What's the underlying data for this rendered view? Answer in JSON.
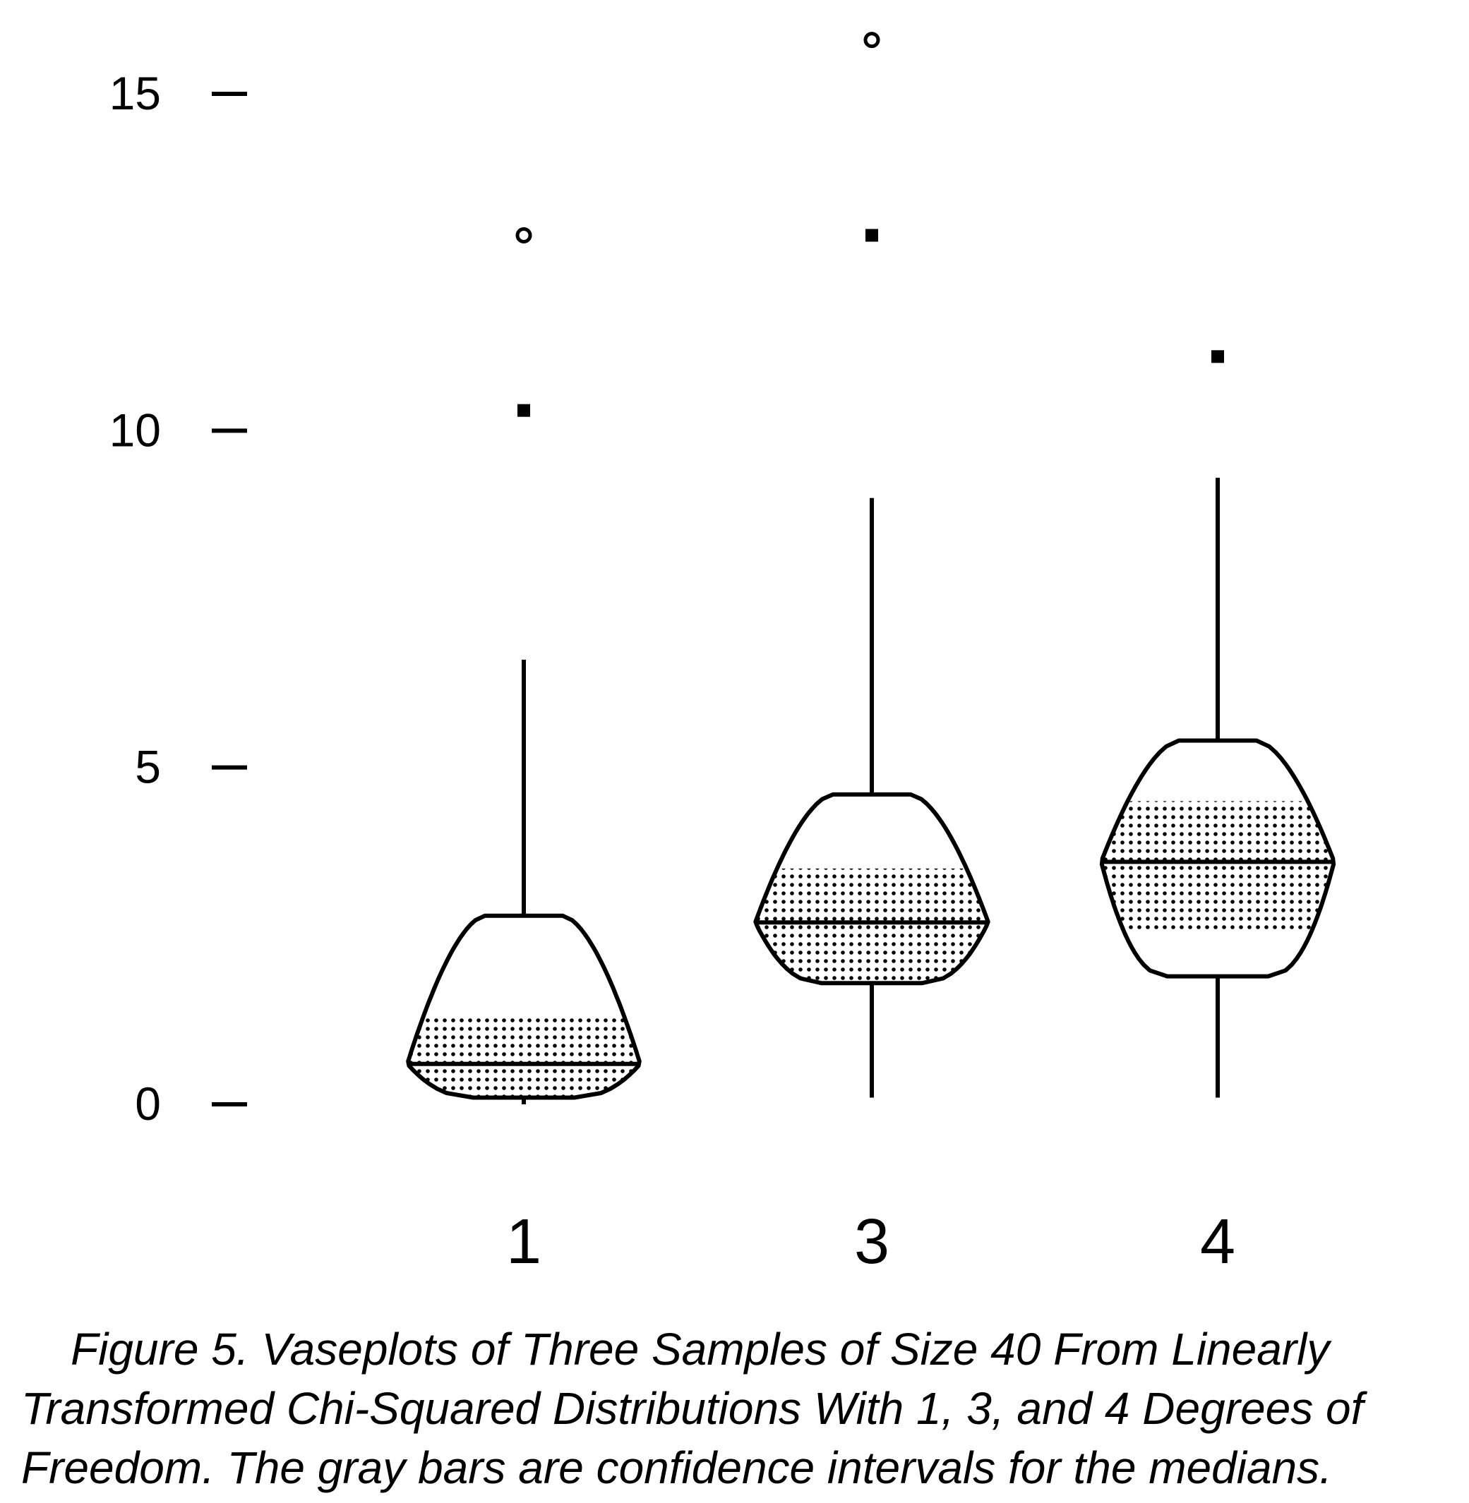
{
  "chart_data": {
    "type": "vaseplot",
    "ylim": [
      -0.5,
      16.5
    ],
    "yticks": [
      0,
      5,
      10,
      15
    ],
    "ytick_labels": [
      "0",
      "5",
      "10",
      "15"
    ],
    "categories": [
      "1",
      "3",
      "4"
    ],
    "series": [
      {
        "category": "1",
        "whisker_low": 0,
        "q1": 0.1,
        "median": 0.6,
        "q3": 2.8,
        "whisker_high": 6.6,
        "ci_low": 0.1,
        "ci_high": 1.3,
        "outliers": [
          {
            "y": 10.3,
            "marker": "square"
          },
          {
            "y": 12.9,
            "marker": "circle"
          }
        ]
      },
      {
        "category": "3",
        "whisker_low": 0.1,
        "q1": 1.8,
        "median": 2.7,
        "q3": 4.6,
        "whisker_high": 9.0,
        "ci_low": 1.8,
        "ci_high": 3.5,
        "outliers": [
          {
            "y": 12.9,
            "marker": "square"
          },
          {
            "y": 15.8,
            "marker": "circle"
          }
        ]
      },
      {
        "category": "4",
        "whisker_low": 0.1,
        "q1": 1.9,
        "median": 3.6,
        "q3": 5.4,
        "whisker_high": 9.3,
        "ci_low": 2.6,
        "ci_high": 4.5,
        "outliers": [
          {
            "y": 11.1,
            "marker": "square"
          }
        ]
      }
    ]
  },
  "caption": {
    "line1": "Figure 5.   Vaseplots of Three Samples of Size 40 From Linearly",
    "line2": "Transformed Chi-Squared Distributions With 1, 3, and 4 Degrees of",
    "line3": "Freedom. The gray bars are confidence intervals for the medians."
  }
}
